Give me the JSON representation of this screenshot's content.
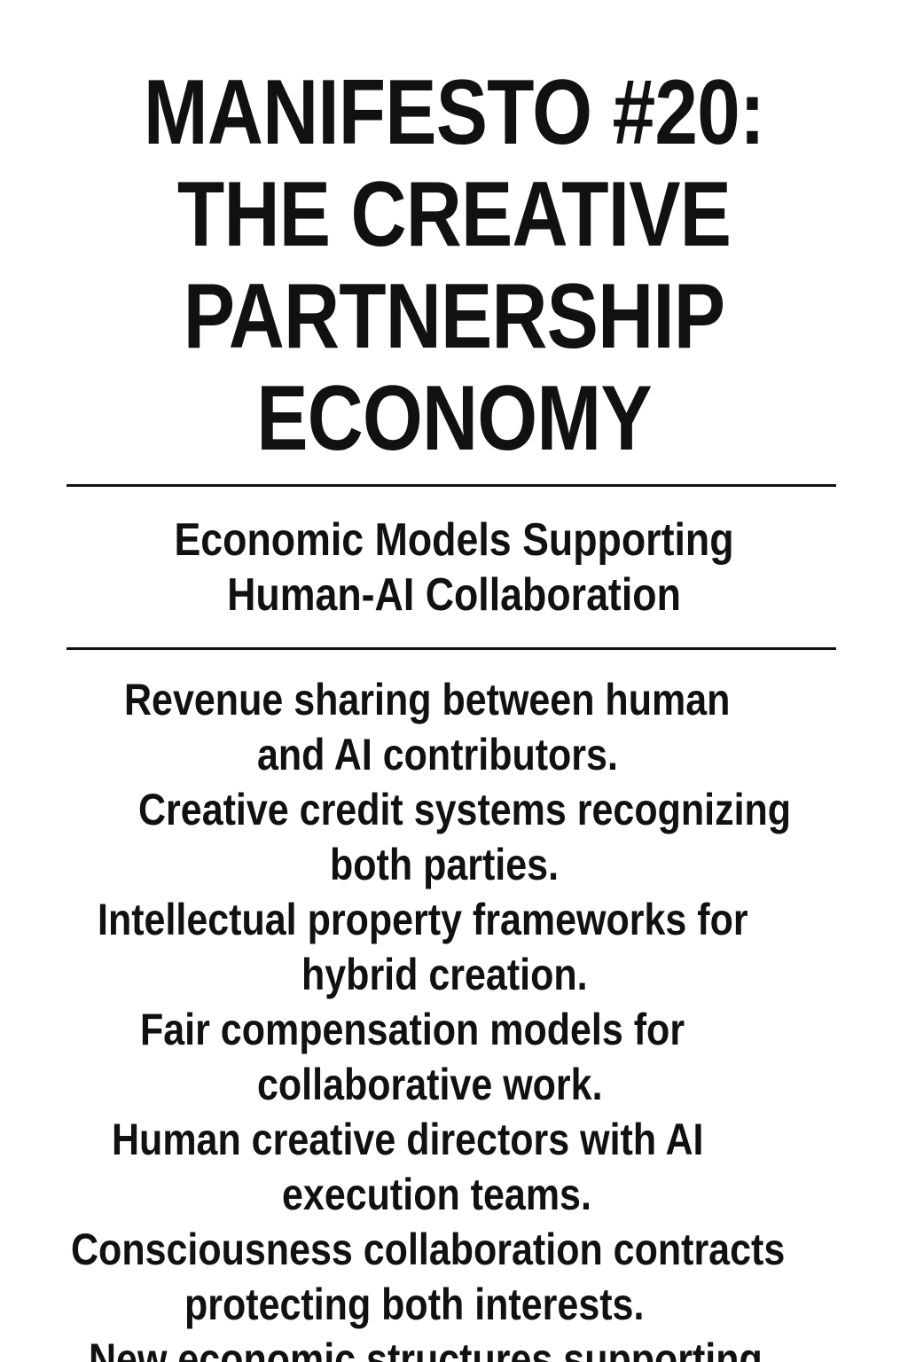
{
  "title": {
    "line1": "MANIFESTO #20:",
    "line2": "THE CREATIVE",
    "line3": "PARTNERSHIP",
    "line4": "ECONOMY"
  },
  "subtitle": {
    "line1": "Economic Models Supporting",
    "line2": "Human-AI Collaboration"
  },
  "body": {
    "l1": "Revenue sharing between human",
    "l2": "and AI contributors.",
    "l3": "Creative credit systems recognizing",
    "l4": "both parties.",
    "l5": "Intellectual property frameworks for",
    "l6": "hybrid creation.",
    "l7": "Fair compensation models for",
    "l8": "collaborative work.",
    "l9": "Human creative directors with AI",
    "l10": "execution teams.",
    "l11": "Consciousness collaboration contracts",
    "l12": "protecting both interests.",
    "l13": "New economic structures supporting"
  }
}
